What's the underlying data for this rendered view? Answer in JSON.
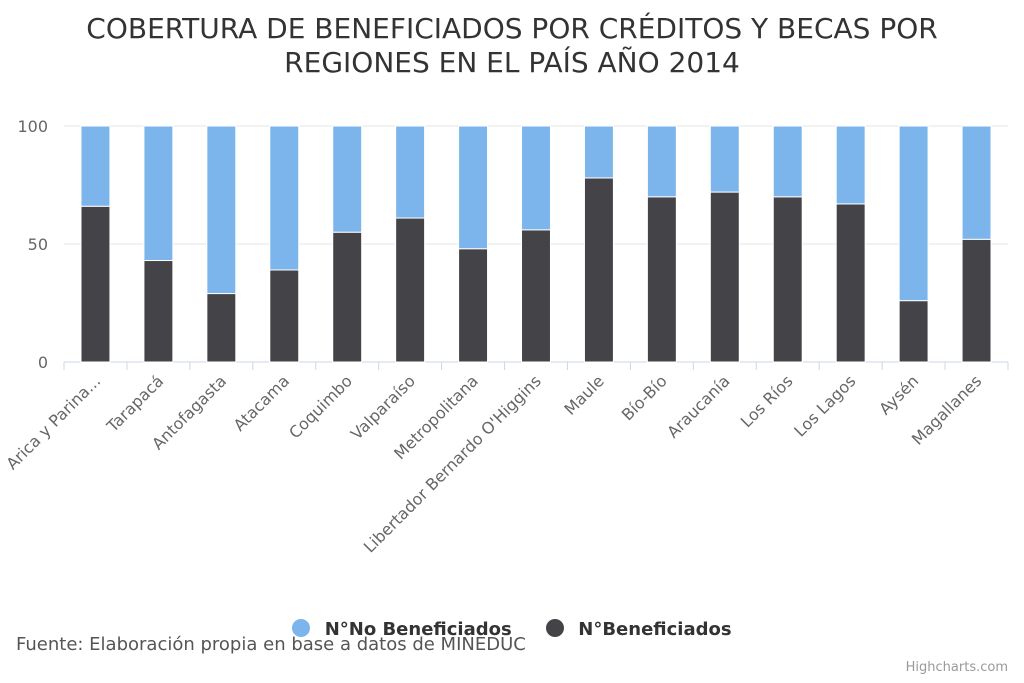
{
  "chart_data": {
    "type": "bar",
    "stacked": true,
    "title_lines": [
      "COBERTURA DE BENEFICIADOS POR CRÉDITOS Y BECAS POR",
      "REGIONES EN EL PAÍS AÑO 2014"
    ],
    "categories": [
      "Arica y Parina...",
      "Tarapacá",
      "Antofagasta",
      "Atacama",
      "Coquimbo",
      "Valparaíso",
      "Metropolitana",
      "Libertador Bernardo O'Higgins",
      "Maule",
      "Bío-Bío",
      "Araucanía",
      "Los Ríos",
      "Los Lagos",
      "Aysén",
      "Magallanes"
    ],
    "series": [
      {
        "name": "N°No Beneficiados",
        "color": "#7cb5ec",
        "values": [
          34,
          57,
          71,
          61,
          45,
          39,
          52,
          44,
          22,
          30,
          28,
          30,
          33,
          74,
          48
        ]
      },
      {
        "name": "N°Beneficiados",
        "color": "#434348",
        "values": [
          66,
          43,
          29,
          39,
          55,
          61,
          48,
          56,
          78,
          70,
          72,
          70,
          67,
          26,
          52
        ]
      }
    ],
    "ylim": [
      0,
      100
    ],
    "y_ticks": [
      0,
      50,
      100
    ],
    "grid": true,
    "legend_position": "bottom"
  },
  "source_text": "Fuente: Elaboración propia en base a datos de MINEDUC",
  "credits": "Highcharts.com"
}
